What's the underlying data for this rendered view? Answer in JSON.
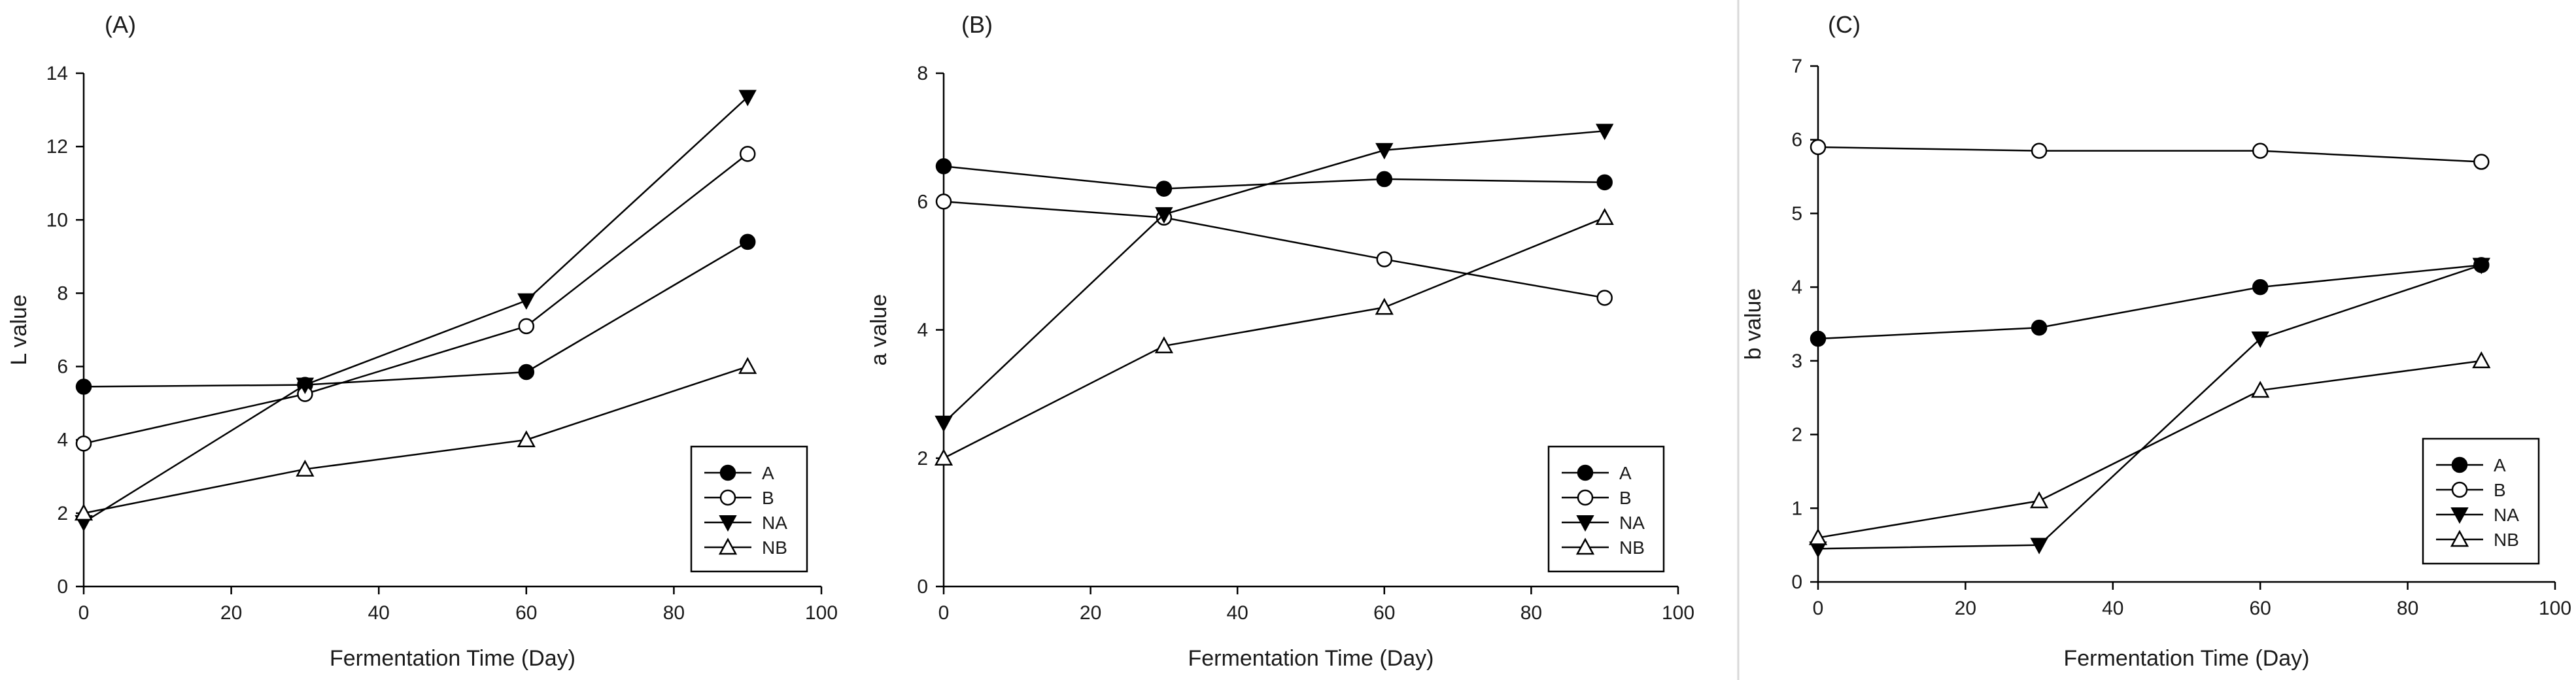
{
  "chart_data": [
    {
      "type": "line",
      "panel_label": "(A)",
      "xlabel": "Fermentation Time (Day)",
      "ylabel": "L value",
      "xlim": [
        0,
        100
      ],
      "ylim": [
        0,
        14
      ],
      "xticks": [
        0,
        20,
        40,
        60,
        80,
        100
      ],
      "yticks": [
        0,
        2,
        4,
        6,
        8,
        10,
        12,
        14
      ],
      "x": [
        0,
        30,
        60,
        90
      ],
      "legend_position": "bottom-right",
      "series": [
        {
          "name": "A",
          "marker": "circle-filled",
          "values": [
            5.45,
            5.5,
            5.85,
            9.4
          ]
        },
        {
          "name": "B",
          "marker": "circle-open",
          "values": [
            3.9,
            5.25,
            7.1,
            11.8
          ]
        },
        {
          "name": "NA",
          "marker": "triangle-down-filled",
          "values": [
            1.75,
            5.5,
            7.8,
            13.35
          ]
        },
        {
          "name": "NB",
          "marker": "triangle-up-open",
          "values": [
            2.0,
            3.2,
            4.0,
            6.0
          ]
        }
      ]
    },
    {
      "type": "line",
      "panel_label": "(B)",
      "xlabel": "Fermentation Time (Day)",
      "ylabel": "a value",
      "xlim": [
        0,
        100
      ],
      "ylim": [
        0,
        8
      ],
      "xticks": [
        0,
        20,
        40,
        60,
        80,
        100
      ],
      "yticks": [
        0,
        2,
        4,
        6,
        8
      ],
      "x": [
        0,
        30,
        60,
        90
      ],
      "legend_position": "bottom-right",
      "series": [
        {
          "name": "A",
          "marker": "circle-filled",
          "values": [
            6.55,
            6.2,
            6.35,
            6.3
          ]
        },
        {
          "name": "B",
          "marker": "circle-open",
          "values": [
            6.0,
            5.75,
            5.1,
            4.5
          ]
        },
        {
          "name": "NA",
          "marker": "triangle-down-filled",
          "values": [
            2.55,
            5.8,
            6.8,
            7.1
          ]
        },
        {
          "name": "NB",
          "marker": "triangle-up-open",
          "values": [
            2.0,
            3.75,
            4.35,
            5.75
          ]
        }
      ]
    },
    {
      "type": "line",
      "panel_label": "(C)",
      "xlabel": "Fermentation Time (Day)",
      "ylabel": "b value",
      "xlim": [
        0,
        100
      ],
      "ylim": [
        0,
        7
      ],
      "xticks": [
        0,
        20,
        40,
        60,
        80,
        100
      ],
      "yticks": [
        0,
        1,
        2,
        3,
        4,
        5,
        6,
        7
      ],
      "x": [
        0,
        30,
        60,
        90
      ],
      "legend_position": "bottom-right",
      "series": [
        {
          "name": "A",
          "marker": "circle-filled",
          "values": [
            3.3,
            3.45,
            4.0,
            4.3
          ]
        },
        {
          "name": "B",
          "marker": "circle-open",
          "values": [
            5.9,
            5.85,
            5.85,
            5.7
          ]
        },
        {
          "name": "NA",
          "marker": "triangle-down-filled",
          "values": [
            0.45,
            0.5,
            3.3,
            4.3
          ]
        },
        {
          "name": "NB",
          "marker": "triangle-up-open",
          "values": [
            0.6,
            1.1,
            2.6,
            3.0
          ]
        }
      ]
    }
  ]
}
